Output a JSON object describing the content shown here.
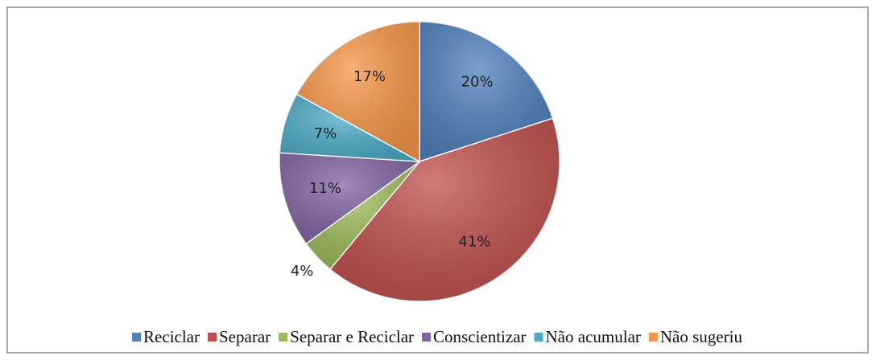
{
  "chart_data": {
    "type": "pie",
    "categories": [
      "Reciclar",
      "Separar",
      "Separar e Reciclar",
      "Conscientizar",
      "Não acumular",
      "Não sugeriu"
    ],
    "values": [
      20,
      41,
      4,
      11,
      7,
      17
    ],
    "value_labels": [
      "20%",
      "41%",
      "4%",
      "11%",
      "7%",
      "17%"
    ],
    "colors": [
      "#4f81bd",
      "#c0504d",
      "#9bbb59",
      "#8064a2",
      "#4bacc6",
      "#f79646"
    ],
    "legend": "bottom"
  }
}
